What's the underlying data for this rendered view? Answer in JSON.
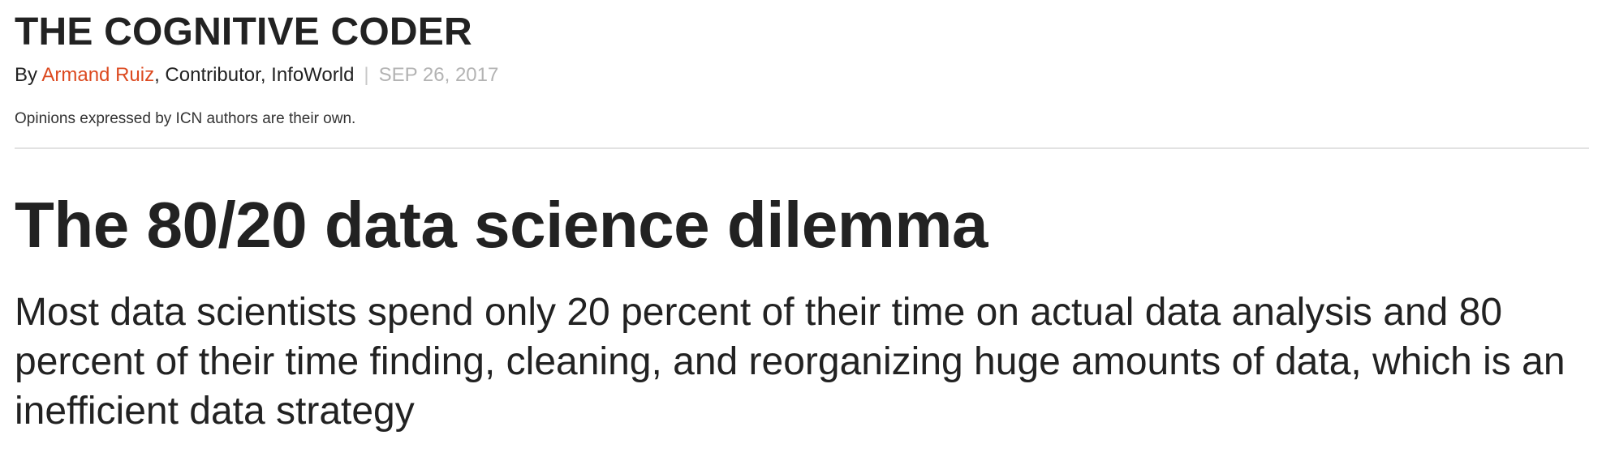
{
  "blog": {
    "title": "THE COGNITIVE CODER"
  },
  "byline": {
    "prefix": "By ",
    "author": "Armand Ruiz",
    "role": ", Contributor, InfoWorld",
    "separator": "|",
    "date": "SEP 26, 2017"
  },
  "disclaimer": "Opinions expressed by ICN authors are their own.",
  "article": {
    "headline": "The 80/20 data science dilemma",
    "subhead": "Most data scientists spend only 20 percent of their time on actual data analysis and 80 percent of their time finding, cleaning, and reorganizing huge amounts of data, which is an inefficient data strategy"
  },
  "colors": {
    "text": "#222222",
    "author_link": "#dc4a20",
    "date": "#b3b3b3",
    "divider": "#e2e2e2"
  }
}
